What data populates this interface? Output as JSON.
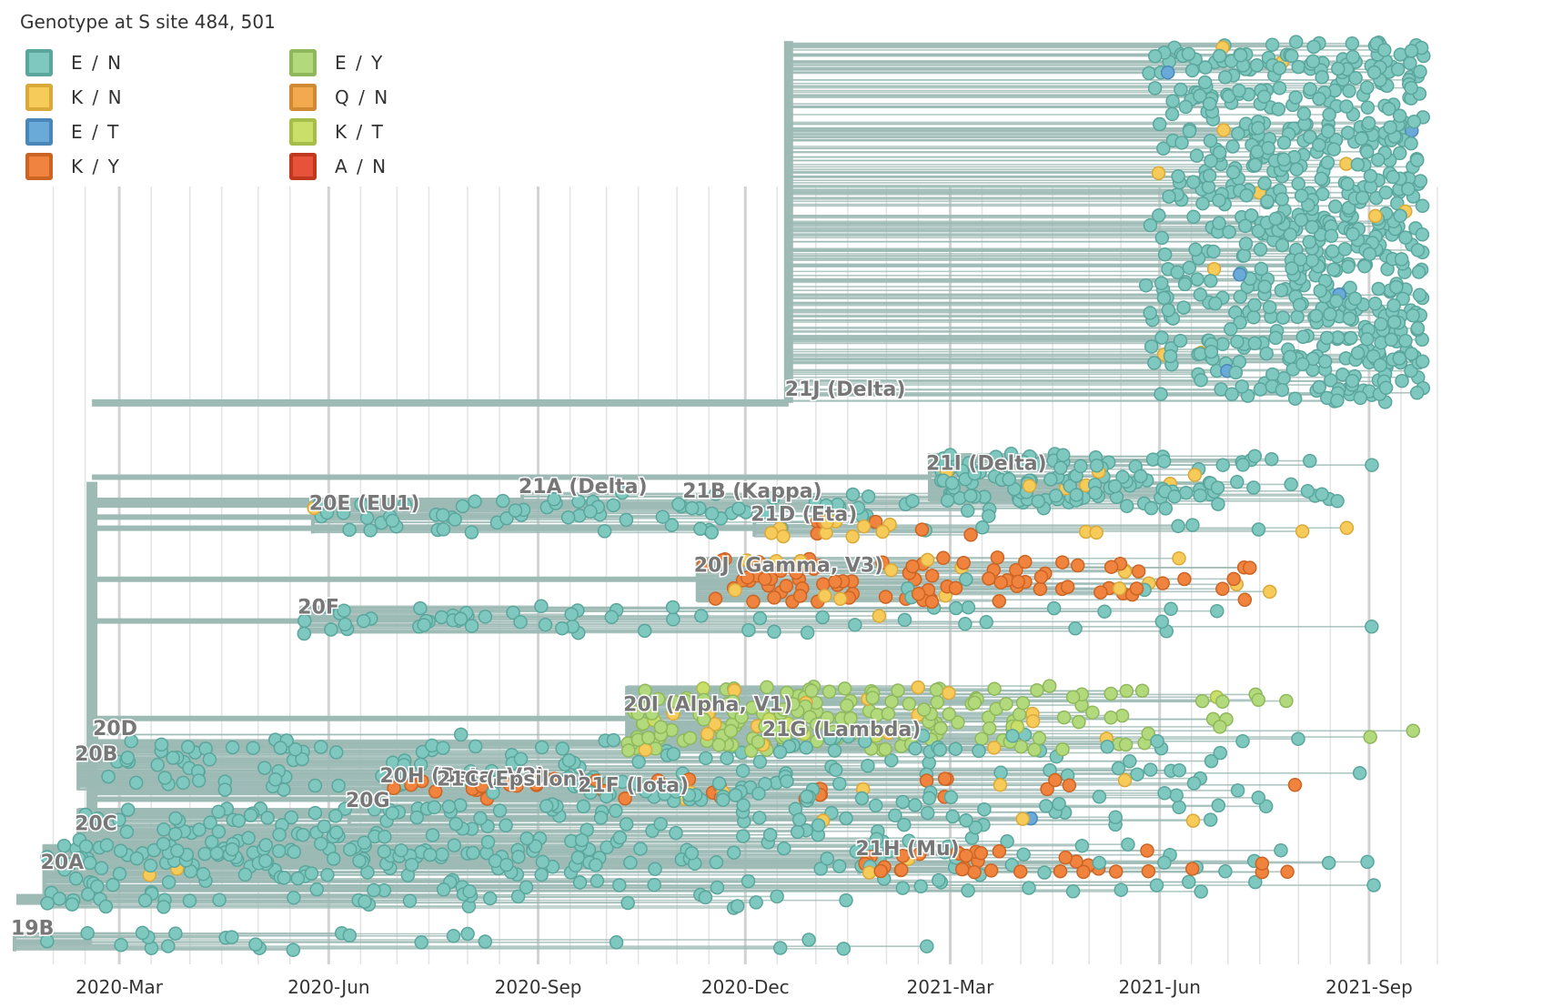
{
  "legend": {
    "title": "Genotype at S site 484, 501",
    "items": [
      {
        "label": "E / N",
        "color": "#7fc8bf",
        "border": "#5aa69c"
      },
      {
        "label": "K / N",
        "color": "#f6cb5a",
        "border": "#d9a93a"
      },
      {
        "label": "E / T",
        "color": "#6aaad9",
        "border": "#4a87b8"
      },
      {
        "label": "K / Y",
        "color": "#f0843e",
        "border": "#cc6424"
      },
      {
        "label": "E / Y",
        "color": "#b2da7d",
        "border": "#8fb85c"
      },
      {
        "label": "Q / N",
        "color": "#f3aa4f",
        "border": "#d08a32"
      },
      {
        "label": "K / T",
        "color": "#c9df6a",
        "border": "#a6bd4a"
      },
      {
        "label": "A / N",
        "color": "#e6533a",
        "border": "#c03820"
      }
    ]
  },
  "chart_data": {
    "type": "scatter",
    "title": "",
    "xlabel": "",
    "ylabel": "",
    "x_range": [
      "2020-01-15",
      "2021-10-05"
    ],
    "x_ticks": [
      "2020-Mar",
      "2020-Jun",
      "2020-Sep",
      "2020-Dec",
      "2021-Mar",
      "2021-Jun",
      "2021-Sep"
    ],
    "grid": true,
    "legend_position": "top-left",
    "clades": [
      {
        "name": "19B",
        "date": "2020-01-15",
        "rank": 0.976,
        "color": "E / N",
        "tips": 24
      },
      {
        "name": "20A",
        "date": "2020-01-28",
        "rank": 0.905,
        "color": "E / N",
        "tips": 170
      },
      {
        "name": "20C",
        "date": "2020-02-12",
        "rank": 0.863,
        "color": "E / N",
        "tips": 150
      },
      {
        "name": "20B",
        "date": "2020-02-12",
        "rank": 0.788,
        "color": "E / N",
        "tips": 110
      },
      {
        "name": "20D",
        "date": "2020-02-20",
        "rank": 0.761,
        "color": "E / N",
        "tips": 18
      },
      {
        "name": "20G",
        "date": "2020-06-10",
        "rank": 0.838,
        "color": "E / N",
        "tips": 30
      },
      {
        "name": "20H (Beta, V2)",
        "date": "2020-06-25",
        "rank": 0.812,
        "color": "K / Y",
        "tips": 40
      },
      {
        "name": "21C (Epsilon)",
        "date": "2020-07-20",
        "rank": 0.815,
        "color": "E / N",
        "tips": 25
      },
      {
        "name": "21F (Iota)",
        "date": "2020-09-20",
        "rank": 0.822,
        "color": "E / N",
        "tips": 20
      },
      {
        "name": "20I (Alpha, V1)",
        "date": "2020-10-10",
        "rank": 0.735,
        "color": "E / Y",
        "tips": 260
      },
      {
        "name": "21G (Lambda)",
        "date": "2020-12-10",
        "rank": 0.762,
        "color": "E / N",
        "tips": 20
      },
      {
        "name": "21H (Mu)",
        "date": "2021-01-20",
        "rank": 0.89,
        "color": "K / Y",
        "tips": 40
      },
      {
        "name": "20F",
        "date": "2020-05-20",
        "rank": 0.63,
        "color": "E / N",
        "tips": 60
      },
      {
        "name": "20J (Gamma, V3)",
        "date": "2020-11-10",
        "rank": 0.585,
        "color": "K / Y",
        "tips": 110
      },
      {
        "name": "20E (EU1)",
        "date": "2020-05-25",
        "rank": 0.518,
        "color": "E / N",
        "tips": 70
      },
      {
        "name": "21A (Delta)",
        "date": "2020-08-25",
        "rank": 0.5,
        "color": "E / N",
        "tips": 14
      },
      {
        "name": "21B (Kappa)",
        "date": "2020-11-05",
        "rank": 0.505,
        "color": "E / N",
        "tips": 14
      },
      {
        "name": "21D (Eta)",
        "date": "2020-12-05",
        "rank": 0.53,
        "color": "K / N",
        "tips": 20
      },
      {
        "name": "21I (Delta)",
        "date": "2021-02-20",
        "rank": 0.475,
        "color": "E / N",
        "tips": 120
      },
      {
        "name": "21J (Delta)",
        "date": "2020-12-20",
        "rank": 0.395,
        "color": "E / N",
        "tips": 1400
      }
    ],
    "annotations": [
      "19B",
      "20A",
      "20C",
      "20B",
      "20D",
      "20G",
      "20H (Beta, V2)",
      "21C (Epsilon)",
      "21F (Iota)",
      "20I (Alpha, V1)",
      "21G (Lambda)",
      "21H (Mu)",
      "20F",
      "20J (Gamma, V3)",
      "20E (EU1)",
      "21A (Delta)",
      "21B (Kappa)",
      "21D (Eta)",
      "21I (Delta)",
      "21J (Delta)"
    ]
  }
}
